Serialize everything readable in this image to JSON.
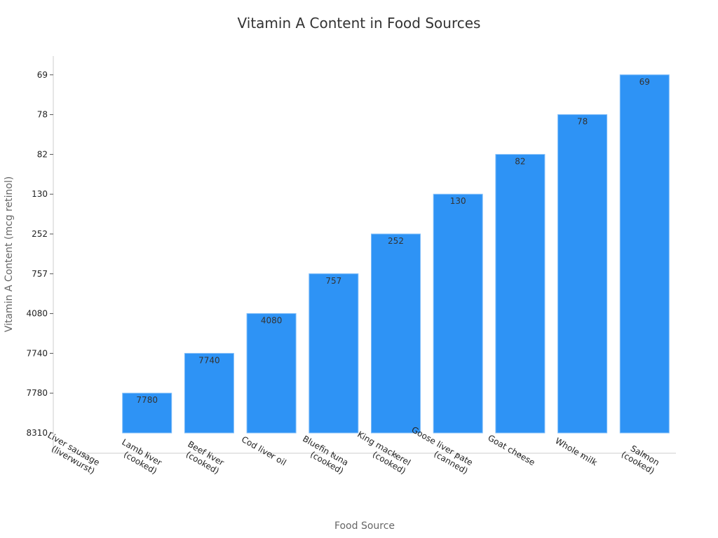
{
  "chart_data": {
    "type": "bar",
    "title": "Vitamin A Content in Food Sources",
    "xlabel": "Food Source",
    "ylabel": "Vitamin A Content (mcg retinol)",
    "categories": [
      [
        "Liver sausage",
        "(liverwurst)"
      ],
      [
        "Lamb liver",
        "(cooked)"
      ],
      [
        "Beef liver",
        "(cooked)"
      ],
      [
        "Cod liver oil"
      ],
      [
        "Bluefin tuna",
        "(cooked)"
      ],
      [
        "King mackerel",
        "(cooked)"
      ],
      [
        "Goose liver pate",
        "(canned)"
      ],
      [
        "Goat cheese"
      ],
      [
        "Whole milk"
      ],
      [
        "Salmon",
        "(cooked)"
      ]
    ],
    "values": [
      8310,
      7780,
      7740,
      4080,
      757,
      252,
      130,
      82,
      78,
      69
    ],
    "y_ticks": [
      "8310",
      "7780",
      "7740",
      "4080",
      "757",
      "252",
      "130",
      "82",
      "78",
      "69"
    ],
    "y_axis_mode": "categorical-ranked",
    "grid": false,
    "bar_color": "#2e93f5",
    "bar_edge_color": "#7fbdf9"
  }
}
